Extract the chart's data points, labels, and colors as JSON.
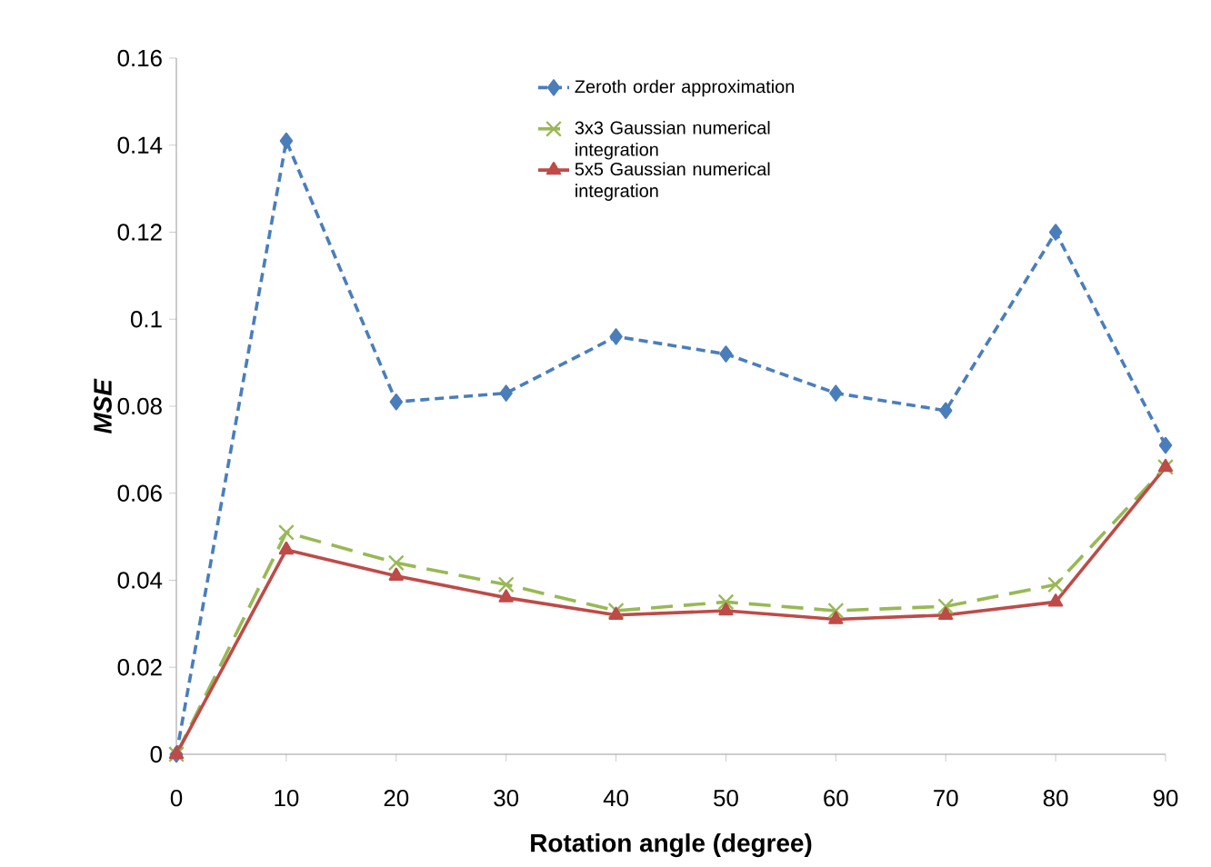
{
  "chart_data": {
    "type": "line",
    "xlabel": "Rotation angle (degree)",
    "ylabel": "*MSE*",
    "x": [
      0,
      10,
      20,
      30,
      40,
      50,
      60,
      70,
      80,
      90
    ],
    "xlim": [
      0,
      90
    ],
    "xticks": [
      0,
      10,
      20,
      30,
      40,
      50,
      60,
      70,
      80,
      90
    ],
    "ylim": [
      0,
      0.16
    ],
    "yticks": [
      0,
      0.02,
      0.04,
      0.06,
      0.08,
      0.1,
      0.12,
      0.14,
      0.16
    ],
    "grid": false,
    "legend": "top",
    "series": [
      {
        "name": "Zeroth order approximation",
        "color": "#4a7ebb",
        "marker": "diamond",
        "line_style": "dashed",
        "values": [
          0,
          0.141,
          0.081,
          0.083,
          0.096,
          0.092,
          0.083,
          0.079,
          0.12,
          0.071
        ]
      },
      {
        "name": "3x3 Gaussian numerical integration",
        "color": "#98b954",
        "marker": "cross",
        "line_style": "dashed",
        "values": [
          0,
          0.051,
          0.044,
          0.039,
          0.033,
          0.035,
          0.033,
          0.034,
          0.039,
          0.066
        ]
      },
      {
        "name": "5x5 Gaussian numerical integration",
        "color": "#be4b48",
        "marker": "triangle",
        "line_style": "solid",
        "values": [
          0,
          0.047,
          0.041,
          0.036,
          0.032,
          0.033,
          0.031,
          0.032,
          0.035,
          0.066
        ]
      }
    ]
  }
}
